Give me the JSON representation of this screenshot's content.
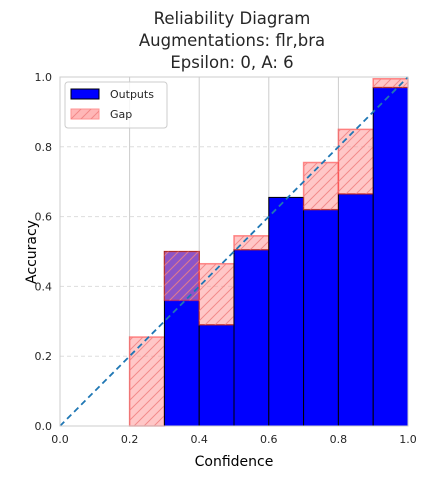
{
  "chart_data": {
    "type": "bar",
    "title_lines": [
      "Reliability Diagram",
      "Augmentations: flr,bra",
      "Epsilon: 0, A: 6"
    ],
    "xlabel": "Confidence",
    "ylabel": "Accuracy",
    "xlim": [
      0.0,
      1.0
    ],
    "ylim": [
      0.0,
      1.0
    ],
    "xticks": [
      "0.0",
      "0.2",
      "0.4",
      "0.6",
      "0.8",
      "1.0"
    ],
    "yticks": [
      "0.0",
      "0.2",
      "0.4",
      "0.6",
      "0.8",
      "1.0"
    ],
    "bin_edges": [
      0.0,
      0.1,
      0.2,
      0.3,
      0.4,
      0.5,
      0.6,
      0.7,
      0.8,
      0.9,
      1.0
    ],
    "grid": true,
    "legend_position": "top-left",
    "series": [
      {
        "name": "Outputs",
        "color": "#0000ff",
        "values": [
          0.0,
          0.0,
          0.0,
          0.5,
          0.29,
          0.505,
          0.655,
          0.62,
          0.665,
          0.97
        ]
      },
      {
        "name": "Gap",
        "color": "#ff9999",
        "bottom": [
          0.0,
          0.0,
          0.0,
          0.36,
          0.29,
          0.505,
          0.655,
          0.62,
          0.665,
          0.97
        ],
        "top": [
          0.0,
          0.0,
          0.255,
          0.5,
          0.465,
          0.545,
          0.655,
          0.755,
          0.85,
          0.995
        ]
      }
    ],
    "diagonal": {
      "from": [
        0,
        0
      ],
      "to": [
        1,
        1
      ],
      "style": "dashed",
      "color": "#1f77b4"
    }
  }
}
